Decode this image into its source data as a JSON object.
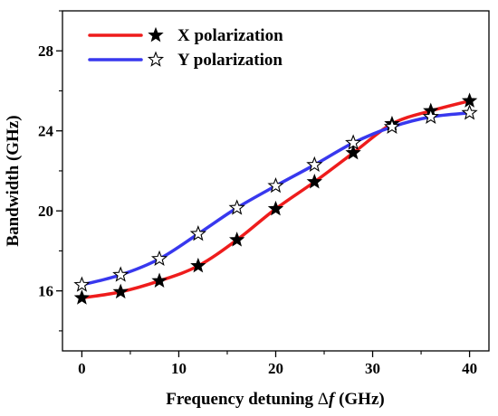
{
  "chart_data": {
    "type": "line",
    "xlabel": "Frequency detuning",
    "xlabel_symbol": "Δ",
    "xlabel_var": "f",
    "xlabel_unit": " (GHz)",
    "ylabel": "Bandwidth (GHz)",
    "xlim": [
      -2,
      42
    ],
    "ylim": [
      13,
      30
    ],
    "xticks": [
      0,
      10,
      20,
      30,
      40
    ],
    "yticks": [
      16,
      20,
      24,
      28
    ],
    "grid": false,
    "legend_position": "top-left",
    "series": [
      {
        "name": "X polarization",
        "line_color": "#ee1c1c",
        "marker": "filled-star",
        "marker_color": "#000000",
        "x": [
          0,
          4,
          8,
          12,
          16,
          20,
          24,
          28,
          32,
          36,
          40
        ],
        "y": [
          15.65,
          15.95,
          16.5,
          17.25,
          18.55,
          20.1,
          21.45,
          22.9,
          24.35,
          25.0,
          25.5
        ]
      },
      {
        "name": "Y polarization",
        "line_color": "#3838ee",
        "marker": "open-star",
        "marker_color": "#000000",
        "x": [
          0,
          4,
          8,
          12,
          16,
          20,
          24,
          28,
          32,
          36,
          40
        ],
        "y": [
          16.3,
          16.8,
          17.6,
          18.85,
          20.15,
          21.25,
          22.3,
          23.4,
          24.2,
          24.7,
          24.9
        ]
      }
    ]
  }
}
